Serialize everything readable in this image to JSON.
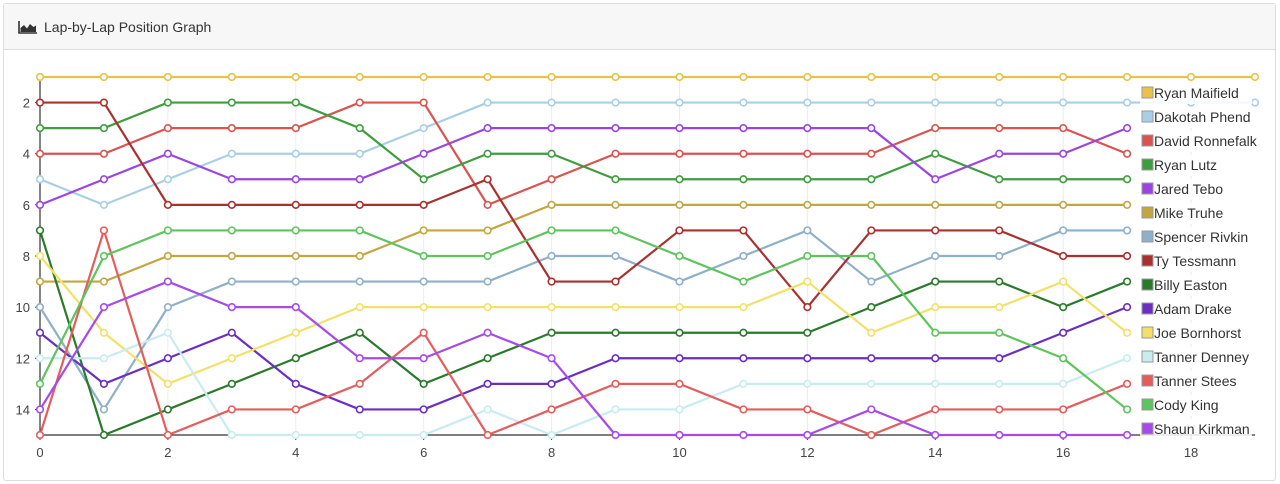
{
  "panel": {
    "title": "Lap-by-Lap Position Graph",
    "icon": "area-chart-icon"
  },
  "chart_data": {
    "type": "line",
    "title": "Lap-by-Lap Position Graph",
    "xlabel": "",
    "ylabel": "",
    "xlim": [
      0,
      19
    ],
    "ylim": [
      15,
      1
    ],
    "xticks": [
      0,
      2,
      4,
      6,
      8,
      10,
      12,
      14,
      16,
      18
    ],
    "yticks": [
      2,
      4,
      6,
      8,
      10,
      12,
      14
    ],
    "grid": "vertical",
    "legend": "right",
    "series": [
      {
        "name": "Ryan Maifield",
        "color": "#e8c24a",
        "x": [
          0,
          1,
          2,
          3,
          4,
          5,
          6,
          7,
          8,
          9,
          10,
          11,
          12,
          13,
          14,
          15,
          16,
          17,
          18,
          19
        ],
        "values": [
          1,
          1,
          1,
          1,
          1,
          1,
          1,
          1,
          1,
          1,
          1,
          1,
          1,
          1,
          1,
          1,
          1,
          1,
          1,
          1
        ]
      },
      {
        "name": "Dakotah Phend",
        "color": "#a9cfe6",
        "x": [
          0,
          1,
          2,
          3,
          4,
          5,
          6,
          7,
          8,
          9,
          10,
          11,
          12,
          13,
          14,
          15,
          16,
          17,
          18,
          19
        ],
        "values": [
          5,
          6,
          5,
          4,
          4,
          4,
          3,
          2,
          2,
          2,
          2,
          2,
          2,
          2,
          2,
          2,
          2,
          2,
          2,
          2
        ]
      },
      {
        "name": "David Ronnefalk",
        "color": "#d9534f",
        "x": [
          0,
          1,
          2,
          3,
          4,
          5,
          6,
          7,
          8,
          9,
          10,
          11,
          12,
          13,
          14,
          15,
          16,
          17
        ],
        "values": [
          4,
          4,
          3,
          3,
          3,
          2,
          2,
          6,
          5,
          4,
          4,
          4,
          4,
          4,
          3,
          3,
          3,
          4
        ]
      },
      {
        "name": "Ryan Lutz",
        "color": "#3e9e3e",
        "x": [
          0,
          1,
          2,
          3,
          4,
          5,
          6,
          7,
          8,
          9,
          10,
          11,
          12,
          13,
          14,
          15,
          16,
          17
        ],
        "values": [
          3,
          3,
          2,
          2,
          2,
          3,
          5,
          4,
          4,
          5,
          5,
          5,
          5,
          5,
          4,
          5,
          5,
          5
        ]
      },
      {
        "name": "Jared Tebo",
        "color": "#9b45e0",
        "x": [
          0,
          1,
          2,
          3,
          4,
          5,
          6,
          7,
          8,
          9,
          10,
          11,
          12,
          13,
          14,
          15,
          16,
          17
        ],
        "values": [
          6,
          5,
          4,
          5,
          5,
          5,
          4,
          3,
          3,
          3,
          3,
          3,
          3,
          3,
          5,
          4,
          4,
          3
        ]
      },
      {
        "name": "Mike Truhe",
        "color": "#c4a640",
        "x": [
          0,
          1,
          2,
          3,
          4,
          5,
          6,
          7,
          8,
          9,
          10,
          11,
          12,
          13,
          14,
          15,
          16,
          17
        ],
        "values": [
          9,
          9,
          8,
          8,
          8,
          8,
          7,
          7,
          6,
          6,
          6,
          6,
          6,
          6,
          6,
          6,
          6,
          6
        ]
      },
      {
        "name": "Spencer Rivkin",
        "color": "#8fb0c9",
        "x": [
          0,
          1,
          2,
          3,
          4,
          5,
          6,
          7,
          8,
          9,
          10,
          11,
          12,
          13,
          14,
          15,
          16,
          17
        ],
        "values": [
          10,
          14,
          10,
          9,
          9,
          9,
          9,
          9,
          8,
          8,
          9,
          8,
          7,
          9,
          8,
          8,
          7,
          7
        ]
      },
      {
        "name": "Ty Tessmann",
        "color": "#a8312f",
        "x": [
          0,
          1,
          2,
          3,
          4,
          5,
          6,
          7,
          8,
          9,
          10,
          11,
          12,
          13,
          14,
          15,
          16,
          17
        ],
        "values": [
          2,
          2,
          6,
          6,
          6,
          6,
          6,
          5,
          9,
          9,
          7,
          7,
          10,
          7,
          7,
          7,
          8,
          8
        ]
      },
      {
        "name": "Billy Easton",
        "color": "#2b7a2b",
        "x": [
          0,
          1,
          2,
          3,
          4,
          5,
          6,
          7,
          8,
          9,
          10,
          11,
          12,
          13,
          14,
          15,
          16,
          17
        ],
        "values": [
          7,
          15,
          14,
          13,
          12,
          11,
          13,
          12,
          11,
          11,
          11,
          11,
          11,
          10,
          9,
          9,
          10,
          9
        ]
      },
      {
        "name": "Adam Drake",
        "color": "#6a2fc2",
        "x": [
          0,
          1,
          2,
          3,
          4,
          5,
          6,
          7,
          8,
          9,
          10,
          11,
          12,
          13,
          14,
          15,
          16,
          17
        ],
        "values": [
          11,
          13,
          12,
          11,
          13,
          14,
          14,
          13,
          13,
          12,
          12,
          12,
          12,
          12,
          12,
          12,
          11,
          10
        ]
      },
      {
        "name": "Joe Bornhorst",
        "color": "#f3e06a",
        "x": [
          0,
          1,
          2,
          3,
          4,
          5,
          6,
          7,
          8,
          9,
          10,
          11,
          12,
          13,
          14,
          15,
          16,
          17
        ],
        "values": [
          8,
          11,
          13,
          12,
          11,
          10,
          10,
          10,
          10,
          10,
          10,
          10,
          9,
          11,
          10,
          10,
          9,
          11
        ]
      },
      {
        "name": "Tanner Denney",
        "color": "#c8ecef",
        "x": [
          0,
          1,
          2,
          3,
          4,
          5,
          6,
          7,
          8,
          9,
          10,
          11,
          12,
          13,
          14,
          15,
          16,
          17
        ],
        "values": [
          12,
          12,
          11,
          15,
          15,
          15,
          15,
          14,
          15,
          14,
          14,
          13,
          13,
          13,
          13,
          13,
          13,
          12
        ]
      },
      {
        "name": "Tanner Stees",
        "color": "#e35d5b",
        "x": [
          0,
          1,
          2,
          3,
          4,
          5,
          6,
          7,
          8,
          9,
          10,
          11,
          12,
          13,
          14,
          15,
          16,
          17
        ],
        "values": [
          15,
          7,
          15,
          14,
          14,
          13,
          11,
          15,
          14,
          13,
          13,
          14,
          14,
          15,
          14,
          14,
          14,
          13
        ]
      },
      {
        "name": "Cody King",
        "color": "#5ec45e",
        "x": [
          0,
          1,
          2,
          3,
          4,
          5,
          6,
          7,
          8,
          9,
          10,
          11,
          12,
          13,
          14,
          15,
          16,
          17
        ],
        "values": [
          13,
          8,
          7,
          7,
          7,
          7,
          8,
          8,
          7,
          7,
          8,
          9,
          8,
          8,
          11,
          11,
          12,
          14
        ]
      },
      {
        "name": "Shaun Kirkman",
        "color": "#a64ae8",
        "x": [
          0,
          1,
          2,
          3,
          4,
          5,
          6,
          7,
          8,
          9,
          10,
          11,
          12,
          13,
          14,
          15,
          16,
          17
        ],
        "values": [
          14,
          10,
          9,
          10,
          10,
          12,
          12,
          11,
          12,
          15,
          15,
          15,
          15,
          14,
          15,
          15,
          15,
          15
        ]
      }
    ]
  }
}
